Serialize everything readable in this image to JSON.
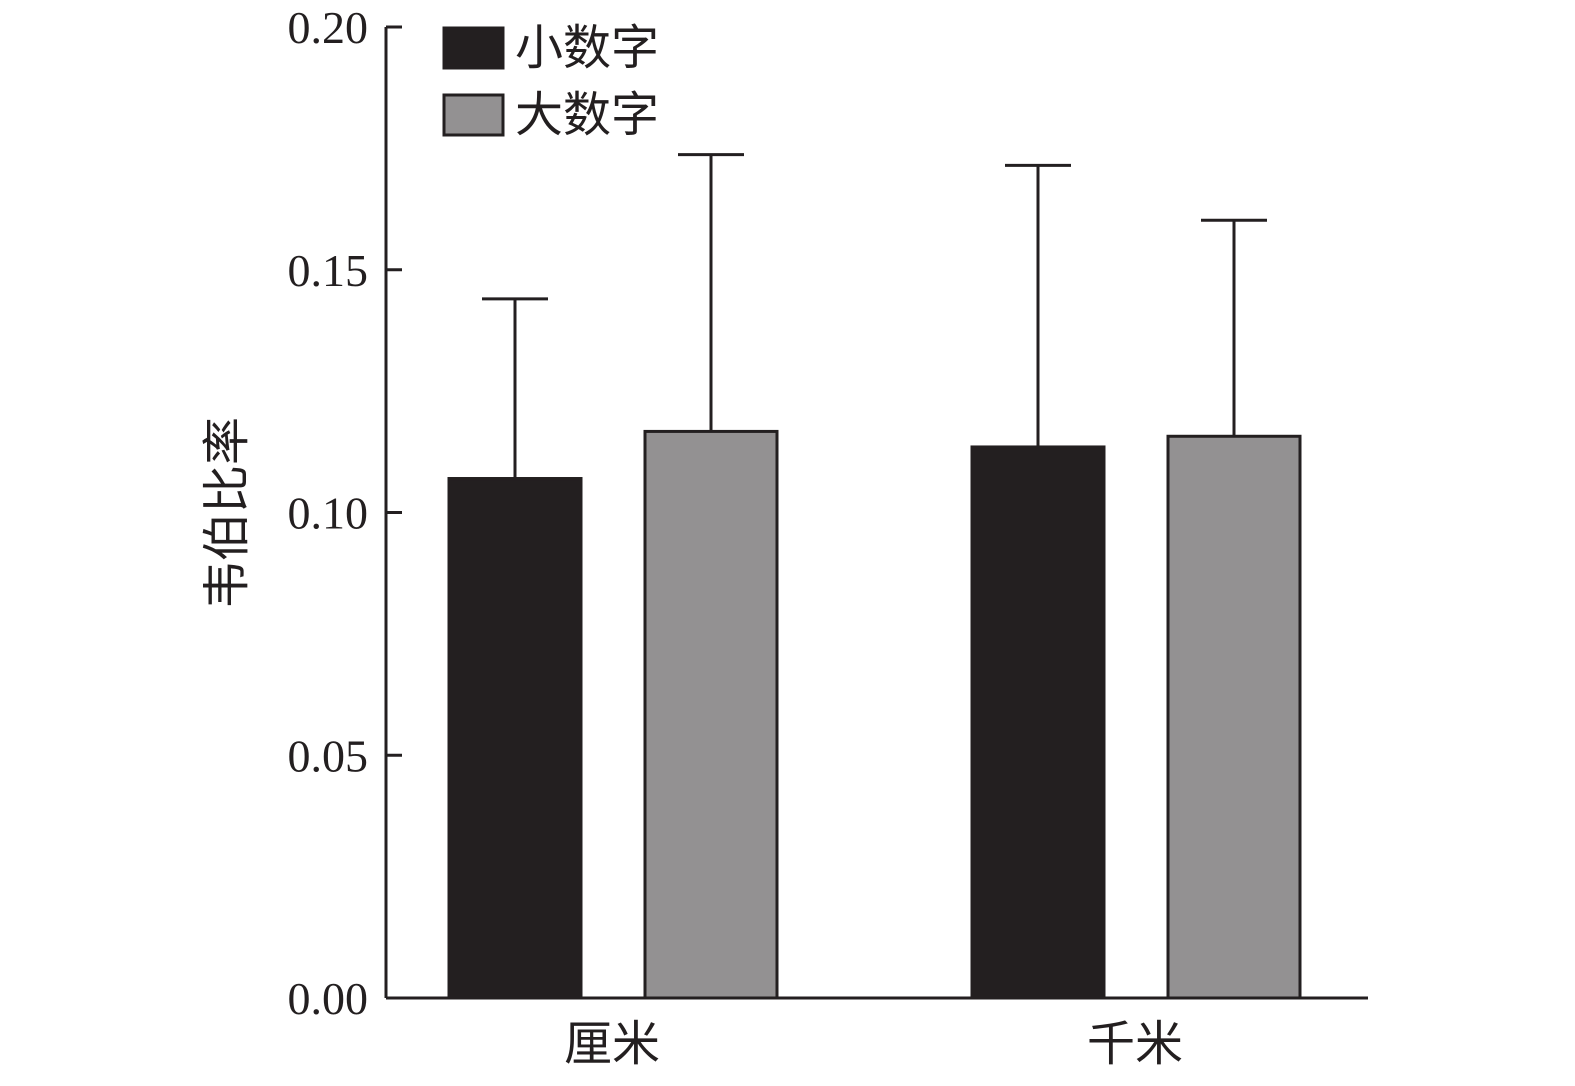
{
  "chart_data": {
    "type": "bar",
    "title": "",
    "xlabel": "",
    "ylabel": "韦伯比率",
    "ylim": [
      0,
      0.2
    ],
    "yticks": [
      "0.00",
      "0.05",
      "0.10",
      "0.15",
      "0.20"
    ],
    "ytick_values": [
      0,
      0.05,
      0.1,
      0.15,
      0.2
    ],
    "categories": [
      "厘米",
      "千米"
    ],
    "series": [
      {
        "name": "小数字",
        "color": "#231f20",
        "values": [
          0.107,
          0.1135
        ],
        "errors": [
          0.037,
          0.058
        ]
      },
      {
        "name": "大数字",
        "color": "#939192",
        "values": [
          0.1167,
          0.1157
        ],
        "errors": [
          0.057,
          0.0445
        ]
      }
    ],
    "error_bars": "upper-only",
    "legend_position": "top-left",
    "grid": false
  },
  "colors": {
    "axis": "#231f20",
    "series_dark": "#231f20",
    "series_gray": "#939192"
  }
}
